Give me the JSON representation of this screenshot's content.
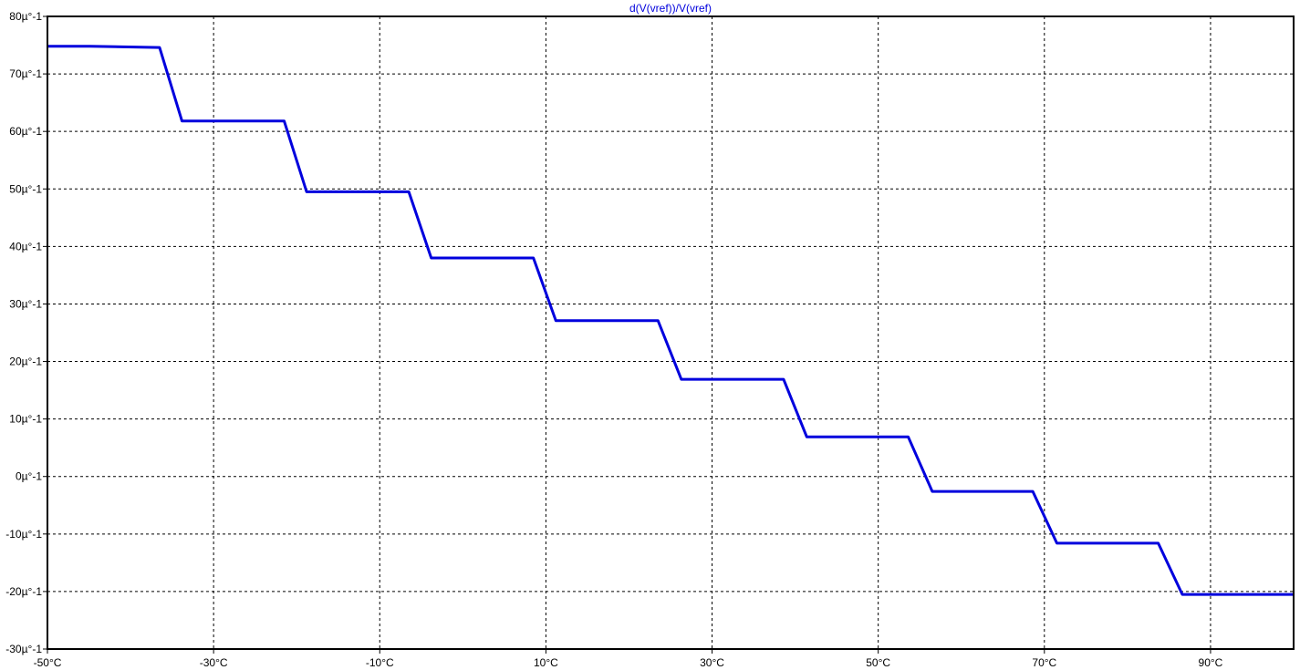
{
  "chart_data": {
    "type": "line",
    "title": "d(V(vref))/V(vref)",
    "xlabel": "",
    "ylabel": "",
    "xlim": [
      -50,
      100
    ],
    "ylim": [
      -30,
      80
    ],
    "grid": true,
    "x_ticks": [
      -50,
      -30,
      -10,
      10,
      30,
      50,
      70,
      90
    ],
    "x_tick_labels": [
      "-50°C",
      "-30°C",
      "-10°C",
      "10°C",
      "30°C",
      "50°C",
      "70°C",
      "90°C"
    ],
    "y_ticks": [
      -30,
      -20,
      -10,
      0,
      10,
      20,
      30,
      40,
      50,
      60,
      70,
      80
    ],
    "y_tick_labels": [
      "-30µ°-1",
      "-20µ°-1",
      "-10µ°-1",
      "0µ°-1",
      "10µ°-1",
      "20µ°-1",
      "30µ°-1",
      "40µ°-1",
      "50µ°-1",
      "60µ°-1",
      "70µ°-1",
      "80µ°-1"
    ],
    "series": [
      {
        "name": "d(V(vref))/V(vref)",
        "color": "#0000dd",
        "x": [
          -50,
          -44.9,
          -36.5,
          -33.8,
          -21.5,
          -18.8,
          -6.5,
          -3.8,
          8.5,
          11.2,
          23.5,
          26.3,
          38.6,
          41.4,
          53.6,
          56.5,
          68.6,
          71.5,
          83.7,
          86.6,
          100
        ],
        "y": [
          74.8,
          74.8,
          74.6,
          61.8,
          61.8,
          49.5,
          49.5,
          38.0,
          38.0,
          27.1,
          27.1,
          16.9,
          16.9,
          6.9,
          6.9,
          -2.6,
          -2.6,
          -11.6,
          -11.6,
          -20.5,
          -20.5
        ]
      }
    ]
  }
}
